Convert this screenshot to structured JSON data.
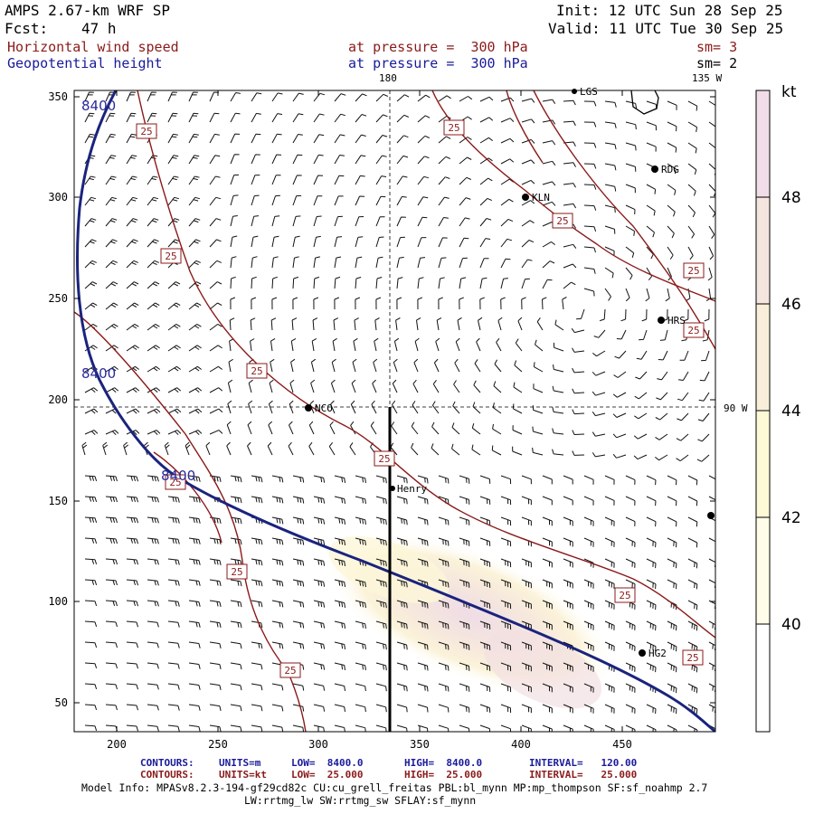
{
  "header": {
    "model": "AMPS 2.67-km WRF SP",
    "fcst_label": "Fcst:",
    "fcst_value": "47 h",
    "init": "Init: 12 UTC Sun 28 Sep 25",
    "valid": "Valid: 11 UTC Tue 30 Sep 25",
    "field1": "Horizontal wind speed",
    "field1_level": "at pressure =  300 hPa",
    "field1_sm": "sm= 3",
    "field2": "Geopotential height",
    "field2_level": "at pressure =  300 hPa",
    "field2_sm": "sm= 2"
  },
  "map": {
    "meridian_180": "180",
    "meridian_135w": "135 W",
    "meridian_90w": "90 W",
    "x_ticks": [
      "200",
      "250",
      "300",
      "350",
      "400",
      "450"
    ],
    "y_ticks": [
      "350",
      "300",
      "250",
      "200",
      "150",
      "100",
      "50"
    ],
    "contour_labels_wind": "25",
    "contour_labels_height": "8400",
    "stations": [
      {
        "name": "RDG"
      },
      {
        "name": "KLN"
      },
      {
        "name": "HRS"
      },
      {
        "name": "NCO"
      },
      {
        "name": "Henry"
      },
      {
        "name": "HG2"
      },
      {
        "name": "LGS"
      }
    ]
  },
  "colorbar": {
    "unit": "kt",
    "levels": [
      "48",
      "46",
      "44",
      "42",
      "40"
    ],
    "colors": [
      "#f0dde8",
      "#f4e6df",
      "#f9eed9",
      "#fdf8d6",
      "#fffde9",
      "#ffffff"
    ]
  },
  "footer": {
    "row1_label": "CONTOURS:",
    "row1_units": "UNITS=m",
    "row1_low": "LOW=  8400.0",
    "row1_high": "HIGH=  8400.0",
    "row1_interval": "INTERVAL=   120.00",
    "row2_label": "CONTOURS:",
    "row2_units": "UNITS=kt",
    "row2_low": "LOW=  25.000",
    "row2_high": "HIGH=  25.000",
    "row2_interval": "INTERVAL=   25.000",
    "model_info": "Model Info: MPASv8.2.3-194-gf29cd82c CU:cu_grell_freitas PBL:bl_mynn MP:mp_thompson SF:sf_noahmp 2.7",
    "model_info2": "LW:rrtmg_lw SW:rrtmg_sw SFLAY:sf_mynn"
  }
}
